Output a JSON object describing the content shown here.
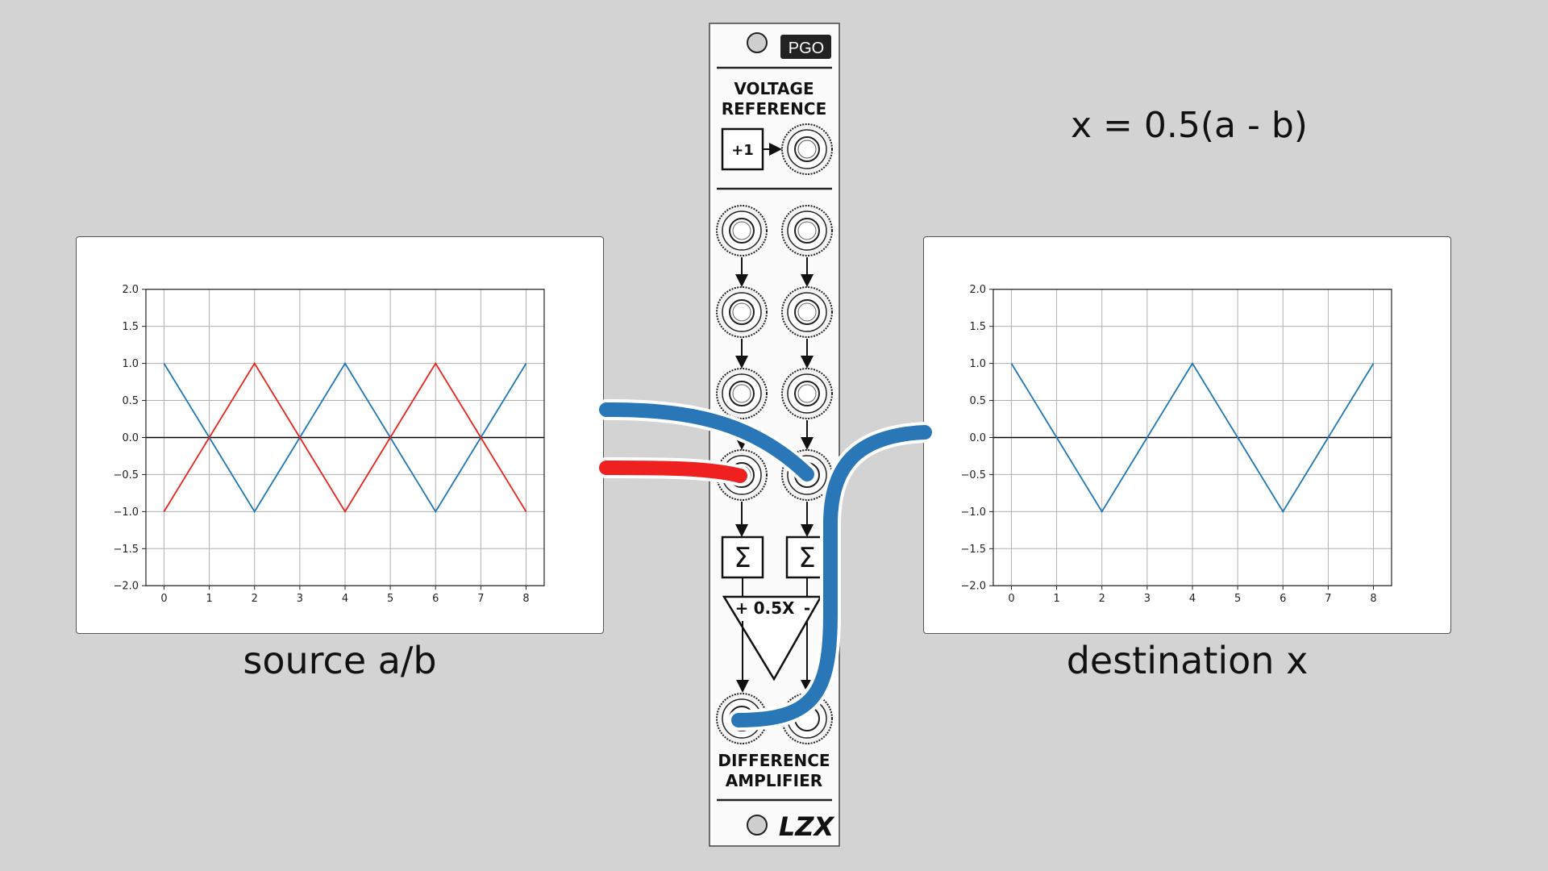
{
  "formula": "x = 0.5(a - b)",
  "module": {
    "badge": "PGO",
    "section_top": [
      "VOLTAGE",
      "REFERENCE"
    ],
    "ref_label": "+1",
    "sigma": "Σ",
    "amp_plus": "+",
    "amp_gain": "0.5X",
    "amp_minus": "-",
    "section_bottom": [
      "DIFFERENCE",
      "AMPLIFIER"
    ],
    "logo": "LZX"
  },
  "captions": {
    "source": "source a/b",
    "destination": "destination x"
  },
  "colors": {
    "series_a": "#1f77b4",
    "series_b": "#e8231e",
    "cable_blue": "#2a77b8",
    "cable_red": "#ee2020"
  },
  "chart_data": [
    {
      "type": "line",
      "title": "",
      "xlabel": "",
      "ylabel": "",
      "xlim": [
        -0.4,
        8.4
      ],
      "ylim": [
        -2.0,
        2.0
      ],
      "xticks": [
        "0",
        "1",
        "2",
        "3",
        "4",
        "5",
        "6",
        "7",
        "8"
      ],
      "yticks": [
        "2.0",
        "1.5",
        "1.0",
        "0.5",
        "0.0",
        "−0.5",
        "−1.0",
        "−1.5",
        "−2.0"
      ],
      "grid": true,
      "x": [
        0,
        1,
        2,
        3,
        4,
        5,
        6,
        7,
        8
      ],
      "series": [
        {
          "values": [
            1,
            0,
            -1,
            0,
            1,
            0,
            -1,
            0,
            1
          ]
        },
        {
          "values": [
            -1,
            0,
            1,
            0,
            -1,
            0,
            1,
            0,
            -1
          ]
        }
      ]
    },
    {
      "type": "line",
      "title": "",
      "xlabel": "",
      "ylabel": "",
      "xlim": [
        -0.4,
        8.4
      ],
      "ylim": [
        -2.0,
        2.0
      ],
      "xticks": [
        "0",
        "1",
        "2",
        "3",
        "4",
        "5",
        "6",
        "7",
        "8"
      ],
      "yticks": [
        "2.0",
        "1.5",
        "1.0",
        "0.5",
        "0.0",
        "−0.5",
        "−1.0",
        "−1.5",
        "−2.0"
      ],
      "grid": true,
      "x": [
        0,
        1,
        2,
        3,
        4,
        5,
        6,
        7,
        8
      ],
      "series": [
        {
          "values": [
            1,
            0,
            -1,
            0,
            1,
            0,
            -1,
            0,
            1
          ]
        }
      ]
    }
  ]
}
